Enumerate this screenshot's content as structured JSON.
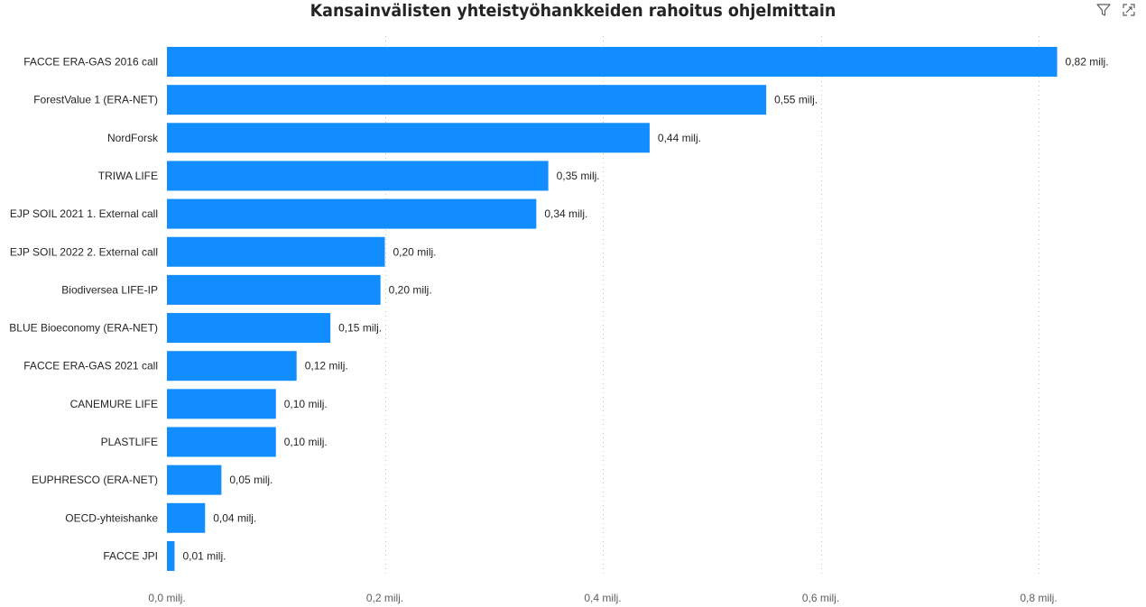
{
  "chart_data": {
    "type": "bar",
    "orientation": "horizontal",
    "title": "Kansainvälisten yhteistyöhankkeiden rahoitus ohjelmittain",
    "xlabel": "",
    "ylabel": "",
    "xlim": [
      0,
      0.9
    ],
    "grid": true,
    "categories": [
      "FACCE ERA-GAS 2016 call",
      "ForestValue 1 (ERA-NET)",
      "NordForsk",
      "TRIWA LIFE",
      "EJP SOIL 2021 1. External call",
      "EJP SOIL 2022 2. External call",
      "Biodiversea LIFE-IP",
      "BLUE Bioeconomy (ERA-NET)",
      "FACCE ERA-GAS 2021 call",
      "CANEMURE LIFE",
      "PLASTLIFE",
      "EUPHRESCO (ERA-NET)",
      "OECD-yhteishanke",
      "FACCE JPI"
    ],
    "values": [
      0.817,
      0.55,
      0.443,
      0.35,
      0.339,
      0.2,
      0.196,
      0.15,
      0.119,
      0.1,
      0.1,
      0.05,
      0.035,
      0.007
    ],
    "data_labels": [
      "0,82 milj.",
      "0,55 milj.",
      "0,44 milj.",
      "0,35 milj.",
      "0,34 milj.",
      "0,20 milj.",
      "0,20 milj.",
      "0,15 milj.",
      "0,12 milj.",
      "0,10 milj.",
      "0,10 milj.",
      "0,05 milj.",
      "0,04 milj.",
      "0,01 milj."
    ],
    "ticks": [
      0,
      0.2,
      0.4,
      0.6,
      0.8
    ],
    "tick_labels": [
      "0,0 milj.",
      "0,2 milj.",
      "0,4 milj.",
      "0,6 milj.",
      "0,8 milj."
    ],
    "bar_color": "#118dff"
  },
  "icons": {
    "filter": "filter-icon",
    "focus": "focus-mode-icon"
  }
}
